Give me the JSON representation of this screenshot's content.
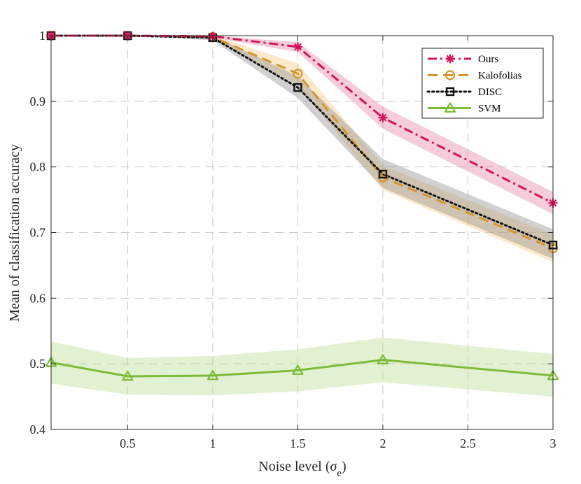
{
  "chart_data": {
    "type": "line",
    "title": "",
    "xlabel_main": "Noise level (",
    "xlabel_sym": "σ",
    "xlabel_sub": "e",
    "xlabel_close": ")",
    "ylabel": "Mean of classification accuracy",
    "x": [
      0.05,
      0.5,
      1,
      1.5,
      2,
      3
    ],
    "xlim": [
      0.05,
      3
    ],
    "ylim": [
      0.4,
      1.0
    ],
    "xticks": [
      0.5,
      1,
      1.5,
      2,
      2.5,
      3
    ],
    "xtick_labels": [
      "0.5",
      "1",
      "1.5",
      "2",
      "2.5",
      "3"
    ],
    "yticks": [
      0.4,
      0.5,
      0.6,
      0.7,
      0.8,
      0.9,
      1.0
    ],
    "ytick_labels": [
      "0.4",
      "0.5",
      "0.6",
      "0.7",
      "0.8",
      "0.9",
      "1"
    ],
    "grid": true,
    "legend_position": "top-right",
    "series": [
      {
        "name": "Ours",
        "color": "#d3145a",
        "band_color": "#e87fa4",
        "dash": "dashdot",
        "marker": "asterisk",
        "values": [
          1.0,
          1.0,
          0.999,
          0.983,
          0.875,
          0.745
        ],
        "band_low": [
          1.0,
          1.0,
          0.997,
          0.975,
          0.858,
          0.728
        ],
        "band_high": [
          1.0,
          1.0,
          1.0,
          0.99,
          0.892,
          0.762
        ]
      },
      {
        "name": "Kalofolias",
        "color": "#d5962e",
        "band_color": "#f2c77a",
        "dash": "dashed",
        "marker": "circle",
        "values": [
          1.0,
          1.0,
          0.998,
          0.942,
          0.784,
          0.676
        ],
        "band_low": [
          1.0,
          1.0,
          0.995,
          0.925,
          0.765,
          0.655
        ],
        "band_high": [
          1.0,
          1.0,
          1.0,
          0.958,
          0.802,
          0.697
        ]
      },
      {
        "name": "DISC",
        "color": "#111111",
        "band_color": "#8a8a8a",
        "dash": "dotted",
        "marker": "square",
        "values": [
          1.0,
          1.0,
          0.997,
          0.921,
          0.789,
          0.681
        ],
        "band_low": [
          1.0,
          1.0,
          0.993,
          0.905,
          0.768,
          0.66
        ],
        "band_high": [
          1.0,
          1.0,
          1.0,
          0.938,
          0.812,
          0.705
        ]
      },
      {
        "name": "SVM",
        "color": "#7cbb35",
        "band_color": "#b7dc8c",
        "dash": "solid",
        "marker": "triangle",
        "values": [
          0.502,
          0.481,
          0.482,
          0.49,
          0.506,
          0.482
        ],
        "band_low": [
          0.47,
          0.453,
          0.452,
          0.458,
          0.472,
          0.45
        ],
        "band_high": [
          0.534,
          0.509,
          0.512,
          0.522,
          0.54,
          0.515
        ]
      }
    ]
  }
}
